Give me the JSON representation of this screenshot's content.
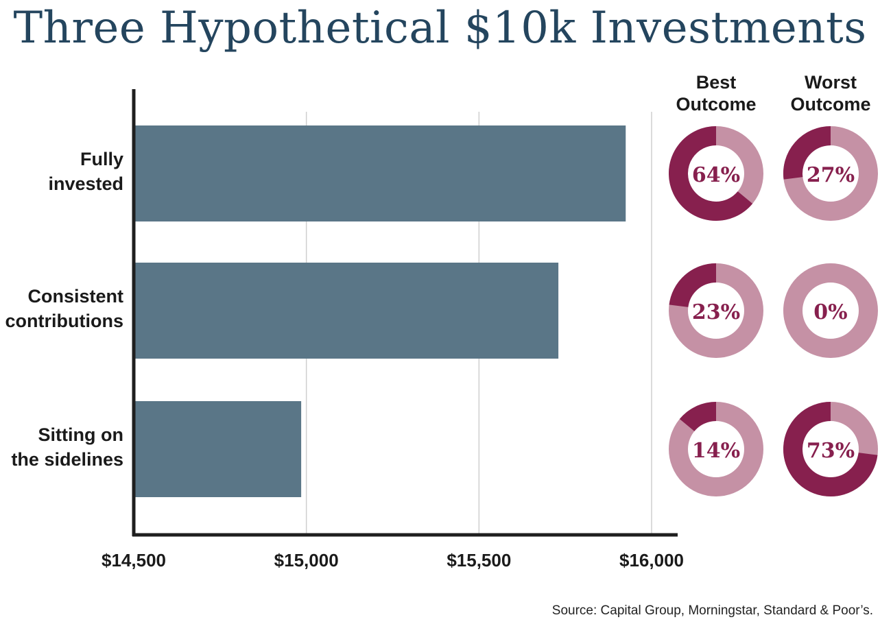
{
  "title": "Three Hypothetical $10k Investments",
  "source": "Source: Capital Group, Morningstar, Standard & Poor’s.",
  "colors": {
    "title": "#24455e",
    "bar": "#5a7687",
    "axis": "#1f1f1f",
    "grid": "#cfcfcf",
    "donut_dark": "#87204e",
    "donut_light": "#c591a5",
    "donut_text": "#87204e"
  },
  "chart_data": {
    "type": "bar",
    "orientation": "horizontal",
    "categories": [
      [
        "Fully",
        "invested"
      ],
      [
        "Consistent",
        "contributions"
      ],
      [
        "Sitting on",
        "the sidelines"
      ]
    ],
    "values": [
      15925,
      15730,
      14985
    ],
    "xlim": [
      14500,
      16000
    ],
    "xticks": [
      14500,
      15000,
      15500,
      16000
    ],
    "xtick_labels": [
      "$14,500",
      "$15,000",
      "$15,500",
      "$16,000"
    ],
    "grid": true,
    "donut_headers": [
      [
        "Best",
        "Outcome"
      ],
      [
        "Worst",
        "Outcome"
      ]
    ],
    "donuts": {
      "best": [
        64,
        23,
        14
      ],
      "worst": [
        27,
        0,
        73
      ],
      "best_labels": [
        "64%",
        "23%",
        "14%"
      ],
      "worst_labels": [
        "27%",
        "0%",
        "73%"
      ]
    }
  }
}
